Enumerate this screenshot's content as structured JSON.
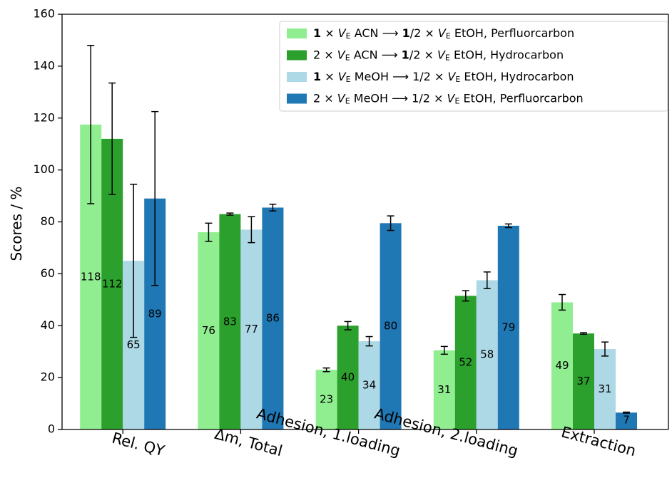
{
  "chart_data": {
    "type": "bar",
    "ylabel": "Scores / %",
    "ylim": [
      0,
      160
    ],
    "yticks": [
      0,
      20,
      40,
      60,
      80,
      100,
      120,
      140,
      160
    ],
    "grid": false,
    "legend_position": "top-right",
    "categories": [
      "Rel. QY",
      "Δm, Total",
      "Adhesion, 1.loading",
      "Adhesion, 2.loading",
      "Extraction"
    ],
    "series": [
      {
        "name": "1 × V_E ACN ⟶ 1/2 × V_E EtOH, Perfluorcarbon",
        "legend_parts": [
          "1",
          " × ",
          "V",
          "E",
          " ACN  ⟶  ",
          "1",
          "/2 × ",
          "V",
          "E",
          " EtOH, Perfluorcarbon"
        ],
        "color": "#90ee90",
        "values": [
          117.5,
          76,
          23,
          30.5,
          49
        ],
        "errors": [
          30.5,
          3.5,
          0.7,
          1.5,
          3
        ],
        "labels": [
          "118",
          "76",
          "23",
          "31",
          "49"
        ]
      },
      {
        "name": "2 × V_E ACN ⟶ 1/2 × V_E EtOH, Hydrocarbon",
        "legend_parts": [
          "2",
          " × ",
          "V",
          "E",
          " ACN  ⟶  ",
          "1",
          "/2 × ",
          "V",
          "E",
          " EtOH, Hydrocarbon"
        ],
        "color": "#2ca02c",
        "values": [
          112,
          83,
          40,
          51.5,
          37
        ],
        "errors": [
          21.5,
          0.4,
          1.6,
          2,
          0.3
        ],
        "labels": [
          "112",
          "83",
          "40",
          "52",
          "37"
        ]
      },
      {
        "name": "1 × V_E MeOH ⟶ 1/2 × V_E EtOH, Hydrocarbon",
        "legend_parts": [
          "1",
          " × ",
          "V",
          "E",
          " MeOH  ⟶  ",
          "1",
          "/2 × ",
          "V",
          "E",
          " EtOH, Hydrocarbon"
        ],
        "color": "#add8e6",
        "values": [
          65,
          77,
          34,
          57.5,
          31
        ],
        "errors": [
          29.5,
          5,
          1.8,
          3.2,
          2.7
        ],
        "labels": [
          "65",
          "77",
          "34",
          "58",
          "31"
        ]
      },
      {
        "name": "2 × V_E MeOH ⟶ 1/2 × V_E EtOH, Perfluorcarbon",
        "legend_parts": [
          "2",
          " × ",
          "V",
          "E",
          " MeOH  ⟶  ",
          "1",
          "/2 × ",
          "V",
          "E",
          " EtOH, Perfluorcarbon"
        ],
        "color": "#1f77b4",
        "values": [
          89,
          85.5,
          79.5,
          78.5,
          6.5
        ],
        "errors": [
          33.5,
          1.3,
          2.8,
          0.7,
          0.2
        ],
        "labels": [
          "89",
          "86",
          "80",
          "79",
          "7"
        ]
      }
    ]
  }
}
